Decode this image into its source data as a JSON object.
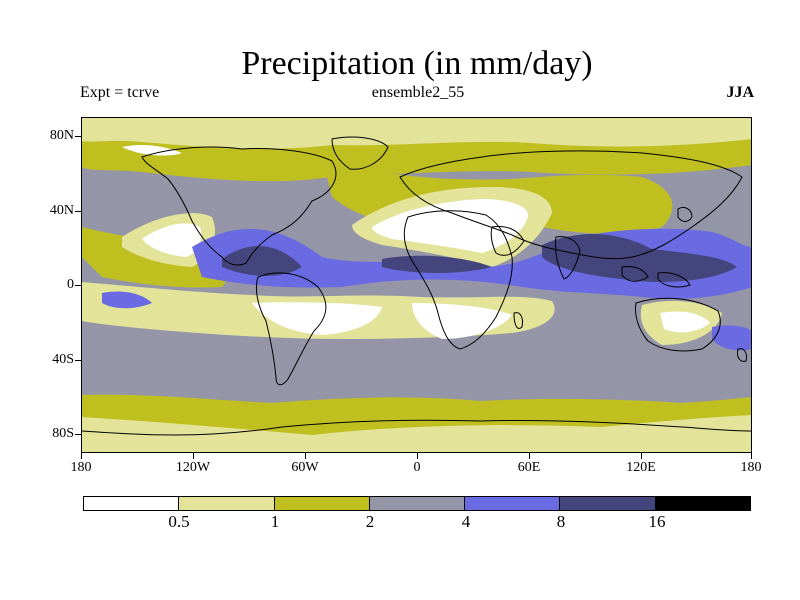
{
  "title": "Precipitation (in mm/day)",
  "experiment": "Expt = tcrve",
  "ensemble": "ensemble2_55",
  "season": "JJA",
  "y_axis_labels": [
    "80N",
    "40N",
    "0",
    "40S",
    "80S"
  ],
  "x_axis_labels": [
    "180",
    "120W",
    "60W",
    "0",
    "60E",
    "120E",
    "180"
  ],
  "colorbar": {
    "colors": [
      "#ffffff",
      "#e3e39a",
      "#bfbf20",
      "#9595a8",
      "#6a6ae2",
      "#45457e",
      "#000000"
    ],
    "labels": [
      "0.5",
      "1",
      "2",
      "4",
      "8",
      "16"
    ]
  }
}
